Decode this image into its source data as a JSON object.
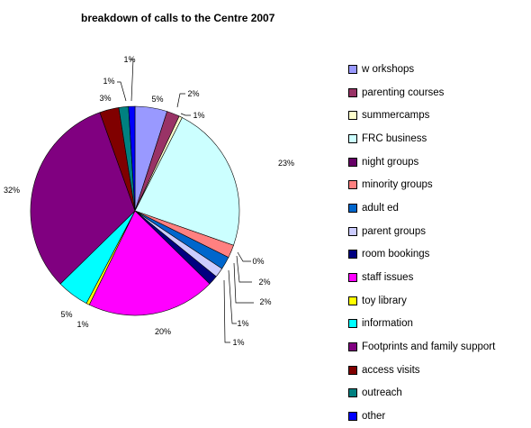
{
  "chart_data": {
    "type": "pie",
    "title": "breakdown of calls to the Centre 2007",
    "legend_position": "right",
    "slices": [
      {
        "label": "w orkshops",
        "value": 5,
        "display": "5%",
        "color": "#9999FF"
      },
      {
        "label": "parenting courses",
        "value": 2,
        "display": "2%",
        "color": "#993366"
      },
      {
        "label": "summercamps",
        "value": 0.5,
        "display": "1%",
        "color": "#FFFFCC"
      },
      {
        "label": "FRC business",
        "value": 23,
        "display": "23%",
        "color": "#CCFFFF"
      },
      {
        "label": "night groups",
        "value": 0,
        "display": "",
        "color": "#660066"
      },
      {
        "label": "minority groups",
        "value": 2,
        "display": "2%",
        "color": "#FF8080"
      },
      {
        "label": "adult ed",
        "value": 2,
        "display": "2%",
        "color": "#0066CC"
      },
      {
        "label": "parent groups",
        "value": 1.5,
        "display": "1%",
        "color": "#CCCCFF"
      },
      {
        "label": "room bookings",
        "value": 1.5,
        "display": "1%",
        "color": "#000080"
      },
      {
        "label": "staff issues",
        "value": 20,
        "display": "20%",
        "color": "#FF00FF"
      },
      {
        "label": "toy library",
        "value": 0.5,
        "display": "1%",
        "color": "#FFFF00"
      },
      {
        "label": "information",
        "value": 5,
        "display": "5%",
        "color": "#00FFFF"
      },
      {
        "label": "Footprints and family support",
        "value": 32,
        "display": "32%",
        "color": "#800080"
      },
      {
        "label": "access visits",
        "value": 3,
        "display": "3%",
        "color": "#800000"
      },
      {
        "label": "outreach",
        "value": 1.5,
        "display": "1%",
        "color": "#008080"
      },
      {
        "label": "other",
        "value": 1,
        "display": "1%",
        "color": "#0000FF"
      }
    ],
    "extra_labels": [
      "0%"
    ]
  }
}
